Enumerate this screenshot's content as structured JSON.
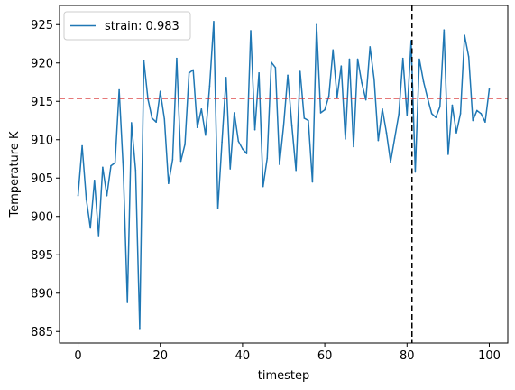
{
  "chart_data": {
    "type": "line",
    "xlabel": "timestep",
    "ylabel": "Temperature K",
    "xlim": [
      -4.5,
      104.5
    ],
    "ylim": [
      883.5,
      927.5
    ],
    "xticks": [
      0,
      20,
      40,
      60,
      80,
      100
    ],
    "yticks": [
      885,
      890,
      895,
      900,
      905,
      910,
      915,
      920,
      925
    ],
    "grid": false,
    "legend": {
      "placement": "top-left"
    },
    "series": [
      {
        "name": "strain: 0.983",
        "color": "#1f77b4",
        "x": [
          0,
          1,
          2,
          3,
          4,
          5,
          6,
          7,
          8,
          9,
          10,
          11,
          12,
          13,
          14,
          15,
          16,
          17,
          18,
          19,
          20,
          21,
          22,
          23,
          24,
          25,
          26,
          27,
          28,
          29,
          30,
          31,
          32,
          33,
          34,
          35,
          36,
          37,
          38,
          39,
          40,
          41,
          42,
          43,
          44,
          45,
          46,
          47,
          48,
          49,
          50,
          51,
          52,
          53,
          54,
          55,
          56,
          57,
          58,
          59,
          60,
          61,
          62,
          63,
          64,
          65,
          66,
          67,
          68,
          69,
          70,
          71,
          72,
          73,
          74,
          75,
          76,
          77,
          78,
          79,
          80,
          81,
          82,
          83,
          84,
          85,
          86,
          87,
          88,
          89,
          90,
          91,
          92,
          93,
          94,
          95,
          96,
          97,
          98,
          99,
          100
        ],
        "y": [
          902.7,
          909.2,
          902.3,
          898.5,
          904.7,
          897.5,
          906.4,
          902.7,
          906.6,
          907.0,
          916.5,
          906.2,
          888.8,
          912.2,
          906.0,
          885.4,
          920.3,
          915.3,
          912.8,
          912.3,
          916.3,
          912.7,
          904.3,
          907.4,
          920.6,
          907.2,
          909.4,
          918.7,
          919.1,
          911.6,
          914.0,
          910.6,
          917.0,
          925.4,
          901.0,
          909.7,
          918.1,
          906.2,
          913.5,
          909.8,
          908.8,
          908.2,
          924.2,
          911.3,
          918.7,
          903.9,
          907.6,
          920.1,
          919.4,
          906.8,
          911.9,
          918.4,
          911.8,
          906.0,
          918.9,
          912.8,
          912.5,
          904.5,
          925.0,
          913.5,
          913.9,
          915.7,
          921.7,
          915.5,
          919.6,
          910.1,
          920.5,
          909.1,
          920.5,
          917.4,
          915.2,
          922.1,
          917.9,
          909.9,
          914.0,
          910.9,
          907.1,
          910.2,
          913.3,
          920.6,
          913.2,
          922.9,
          905.8,
          920.5,
          917.6,
          915.4,
          913.4,
          912.9,
          914.3,
          924.3,
          908.1,
          914.5,
          910.9,
          913.4,
          923.6,
          920.8,
          912.5,
          913.8,
          913.4,
          912.3,
          916.6
        ]
      }
    ],
    "reference_lines": [
      {
        "orientation": "horizontal",
        "value": 915.4,
        "color": "#d62728",
        "style": "dashed"
      },
      {
        "orientation": "vertical",
        "value": 81.2,
        "color": "#000000",
        "style": "dashed"
      }
    ]
  }
}
